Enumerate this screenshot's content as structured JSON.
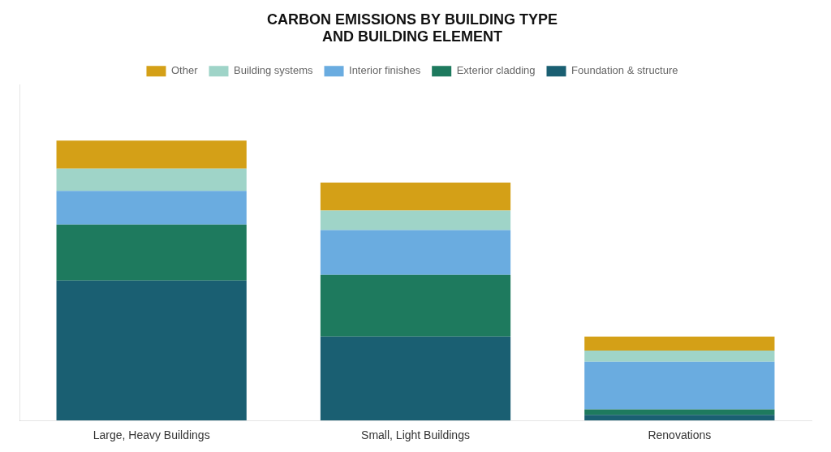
{
  "chart_data": {
    "type": "bar",
    "title": "CARBON EMISSIONS BY BUILDING TYPE\nAND BUILDING ELEMENT",
    "categories": [
      "Large, Heavy Buildings",
      "Small, Light Buildings",
      "Renovations"
    ],
    "series": [
      {
        "name": "Foundation & structure",
        "color": "#1a5f72",
        "values": [
          50,
          30,
          2
        ]
      },
      {
        "name": "Exterior cladding",
        "color": "#1e7a5e",
        "values": [
          20,
          22,
          2
        ]
      },
      {
        "name": "Interior finishes",
        "color": "#6aace0",
        "values": [
          12,
          16,
          17
        ]
      },
      {
        "name": "Building systems",
        "color": "#9fd4c8",
        "values": [
          8,
          7,
          4
        ]
      },
      {
        "name": "Other",
        "color": "#d4a017",
        "values": [
          10,
          10,
          5
        ]
      }
    ],
    "stacked": true,
    "ylim": [
      0,
      120
    ],
    "grid": false,
    "legend": "top",
    "tick_labels": "x"
  }
}
